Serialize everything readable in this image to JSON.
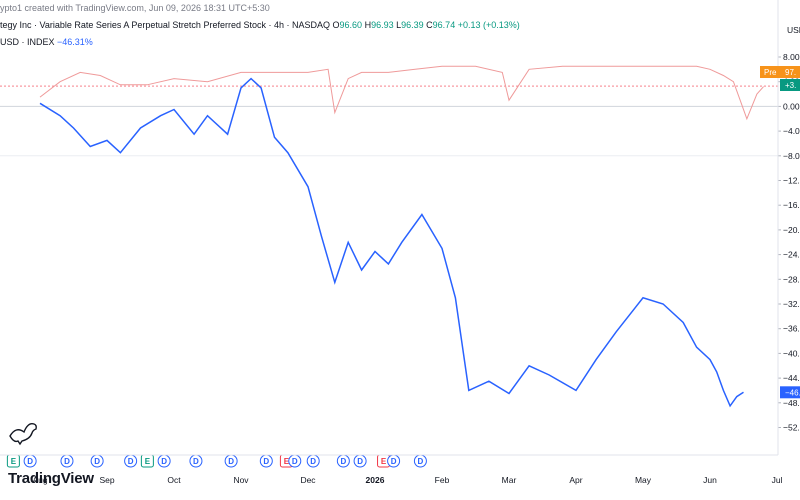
{
  "header": {
    "created": "ypto1 created with TradingView.com, Jun 09, 2026 18:31 UTC+5:30",
    "symbol": "tegy Inc · Variable Rate Series A Perpetual Stretch Preferred Stock · 4h · NASDAQ",
    "o_label": "O",
    "o_value": "96.60",
    "h_label": "H",
    "h_value": "96.93",
    "l_label": "L",
    "l_value": "96.39",
    "c_label": "C",
    "c_value": "96.74",
    "change": "+0.13 (+0.13%)",
    "index_name": "USD · INDEX",
    "index_change": "−46.31%"
  },
  "brand": "TradingView",
  "axis": {
    "currency": "USD",
    "pre_badge": "Pre",
    "price_badge": "97.",
    "change_badge": "+3.",
    "index_badge": "−46."
  },
  "colors": {
    "index_line": "#2962ff",
    "up": "#089981",
    "down": "#f23645",
    "pre": "#f7931a"
  },
  "chart_data": {
    "type": "line",
    "x_ticks": [
      "Aug",
      "Sep",
      "Oct",
      "Nov",
      "Dec",
      "2026",
      "Feb",
      "Mar",
      "Apr",
      "May",
      "Jun",
      "Jul"
    ],
    "y_ticks": [
      "8.00",
      "4.00",
      "0.00",
      "−4.0",
      "−8.0",
      "−12.",
      "−16.",
      "−20.",
      "−24.",
      "−28.",
      "−32.",
      "−36.",
      "−40.",
      "−44.",
      "−48.",
      "−52."
    ],
    "ylim": [
      -53,
      9
    ],
    "x_range": [
      0,
      11.3
    ],
    "series": [
      {
        "values_x": [
          0,
          0.3,
          0.5,
          0.75,
          1.0,
          1.2,
          1.5,
          1.8,
          2.0,
          2.3,
          2.5,
          2.8,
          3.0,
          3.15,
          3.3,
          3.5,
          3.7,
          4.0,
          4.2,
          4.4,
          4.6,
          4.8,
          5.0,
          5.2,
          5.4,
          5.7,
          6.0,
          6.2,
          6.4,
          6.7,
          7.0,
          7.3,
          7.6,
          8.0,
          8.3,
          8.6,
          9.0,
          9.3,
          9.6,
          9.8,
          10.0,
          10.1,
          10.2,
          10.3,
          10.4,
          10.5
        ],
        "values_y": [
          0.5,
          -1.5,
          -3.5,
          -6.5,
          -5.5,
          -7.5,
          -3.5,
          -1.5,
          -0.5,
          -4.5,
          -1.5,
          -4.5,
          3.0,
          4.5,
          3.0,
          -5.0,
          -7.5,
          -13.0,
          -21.0,
          -28.5,
          -22.0,
          -26.5,
          -23.5,
          -25.5,
          -22.0,
          -17.5,
          -23.0,
          -31.0,
          -46.0,
          -44.5,
          -46.5,
          -42.0,
          -43.5,
          -46.0,
          -41.0,
          -36.5,
          -31.0,
          -32.0,
          -35.0,
          -39.0,
          -41.0,
          -43.0,
          -46.0,
          -48.5,
          -47.0,
          -46.3
        ]
      }
    ],
    "price_overlay": {
      "values_x": [
        0,
        0.3,
        0.6,
        0.9,
        1.2,
        1.6,
        2.0,
        2.5,
        3.0,
        3.5,
        4.0,
        4.3,
        4.4,
        4.6,
        4.8,
        5.2,
        5.6,
        6.0,
        6.5,
        6.9,
        7.0,
        7.3,
        7.8,
        8.3,
        8.8,
        9.3,
        9.8,
        10.0,
        10.2,
        10.35,
        10.45,
        10.55,
        10.7,
        10.8
      ],
      "values_y": [
        1.5,
        4.0,
        5.5,
        5.0,
        3.5,
        3.5,
        4.5,
        4.0,
        5.5,
        5.5,
        5.5,
        6.0,
        -1.0,
        4.5,
        5.5,
        5.5,
        6.0,
        6.5,
        6.5,
        5.5,
        1.0,
        6.0,
        6.5,
        6.5,
        6.5,
        6.5,
        6.5,
        6.0,
        5.0,
        4.0,
        1.0,
        -2.0,
        2.0,
        3.2
      ]
    },
    "events": [
      {
        "x": 0.25,
        "label": "E",
        "kind": "earnings"
      },
      {
        "x": 0.75,
        "label": "D",
        "kind": "dividend"
      },
      {
        "x": 1.85,
        "label": "D",
        "kind": "dividend"
      },
      {
        "x": 2.75,
        "label": "D",
        "kind": "dividend"
      },
      {
        "x": 3.75,
        "label": "D",
        "kind": "dividend"
      },
      {
        "x": 4.25,
        "label": "E",
        "kind": "earnings"
      },
      {
        "x": 4.75,
        "label": "D",
        "kind": "dividend"
      },
      {
        "x": 5.7,
        "label": "D",
        "kind": "dividend"
      },
      {
        "x": 6.75,
        "label": "D",
        "kind": "dividend"
      },
      {
        "x": 7.8,
        "label": "D",
        "kind": "dividend"
      },
      {
        "x": 8.4,
        "label": "E",
        "kind": "earnings-down"
      },
      {
        "x": 8.65,
        "label": "D",
        "kind": "dividend"
      },
      {
        "x": 9.2,
        "label": "D",
        "kind": "dividend"
      },
      {
        "x": 10.1,
        "label": "D",
        "kind": "dividend"
      },
      {
        "x": 10.6,
        "label": "D",
        "kind": "dividend"
      },
      {
        "x": 11.3,
        "label": "E",
        "kind": "earnings-down"
      },
      {
        "x": 11.6,
        "label": "D",
        "kind": "dividend"
      },
      {
        "x": 12.4,
        "label": "D",
        "kind": "dividend"
      }
    ]
  }
}
